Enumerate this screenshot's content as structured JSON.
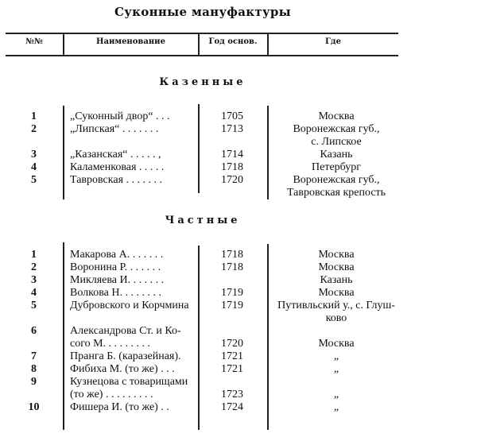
{
  "title": "Суконные мануфактуры",
  "headers": {
    "num": "№№",
    "name": "Наименование",
    "year": "Год основ.",
    "place": "Где"
  },
  "sections": [
    {
      "heading": "Казенные",
      "rows": [
        {
          "num": "1",
          "name": [
            "„Суконный двор“ . . ."
          ],
          "year": "1705",
          "place": [
            "Москва"
          ]
        },
        {
          "num": "2",
          "name": [
            "„Липская“ . . . . . . ."
          ],
          "year": "1713",
          "place": [
            "Воронежская губ.,",
            "с. Липское"
          ]
        },
        {
          "num": "3",
          "name": [
            "„Казанская“ . . . . . ,"
          ],
          "year": "1714",
          "place": [
            "Казань"
          ]
        },
        {
          "num": "4",
          "name": [
            "Каламенковая . . . . ."
          ],
          "year": "1718",
          "place": [
            "Петербург"
          ]
        },
        {
          "num": "5",
          "name": [
            "Тавровская . . . . . . ."
          ],
          "year": "1720",
          "place": [
            "Воронежская губ.,",
            "Тавровская крепость"
          ]
        }
      ]
    },
    {
      "heading": "Частные",
      "rows": [
        {
          "num": "1",
          "name": [
            "Макарова А. . . . . . ."
          ],
          "year": "1718",
          "place": [
            "Москва"
          ]
        },
        {
          "num": "2",
          "name": [
            "Воронина Р. . . . . . ."
          ],
          "year": "1718",
          "place": [
            "Москва"
          ]
        },
        {
          "num": "3",
          "name": [
            "Микляева И. . . . . . ."
          ],
          "year": "",
          "place": [
            "Казань"
          ]
        },
        {
          "num": "4",
          "name": [
            "Волкова Н. . . . . . . ."
          ],
          "year": "1719",
          "place": [
            "Москва"
          ]
        },
        {
          "num": "5",
          "name": [
            "Дубровского и Корчмина"
          ],
          "year": "1719",
          "place": [
            "Путивльский у., с. Глуш-",
            "ково"
          ]
        },
        {
          "num": "6",
          "name": [
            "Александрова Ст. и Ко-",
            "сого М. . . . . . . . ."
          ],
          "year": "1720",
          "place": [
            "Москва"
          ]
        },
        {
          "num": "7",
          "name": [
            "Пранга Б. (каразейная)."
          ],
          "year": "1721",
          "place": [
            "„"
          ]
        },
        {
          "num": "8",
          "name": [
            "Фибиха М. (то же) . . ."
          ],
          "year": "1721",
          "place": [
            "„"
          ]
        },
        {
          "num": "9",
          "name": [
            "Кузнецова с товарищами",
            "(то же) . . . . . . . . ."
          ],
          "year": "1723",
          "place": [
            "„"
          ]
        },
        {
          "num": "10",
          "name": [
            "Фишера И. (то же) . ."
          ],
          "year": "1724",
          "place": [
            "„"
          ]
        }
      ]
    }
  ]
}
